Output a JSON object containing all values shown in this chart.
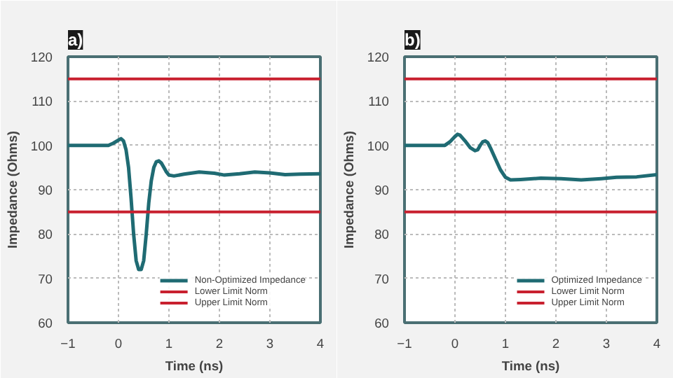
{
  "chart_data": [
    {
      "type": "line",
      "title": "a)",
      "xlabel": "Time (ns)",
      "ylabel": "Impedance (Ohms)",
      "xlim": [
        -1,
        4
      ],
      "ylim": [
        60,
        120
      ],
      "xticks": [
        -1,
        0,
        1,
        2,
        3,
        4
      ],
      "yticks": [
        60,
        70,
        80,
        90,
        100,
        110,
        120
      ],
      "grid": true,
      "legend": "bottom right",
      "series": [
        {
          "name": "Non-Optimized Impedance",
          "color": "#1f6b73",
          "x": [
            -1,
            -0.5,
            -0.2,
            -0.1,
            0,
            0.05,
            0.1,
            0.15,
            0.2,
            0.25,
            0.3,
            0.35,
            0.4,
            0.45,
            0.5,
            0.55,
            0.6,
            0.65,
            0.7,
            0.75,
            0.8,
            0.85,
            0.9,
            0.95,
            1.0,
            1.1,
            1.3,
            1.6,
            1.9,
            2.1,
            2.4,
            2.7,
            3.0,
            3.3,
            3.6,
            4.0
          ],
          "values": [
            100,
            100,
            100,
            100.5,
            101.2,
            101.5,
            101,
            99,
            95,
            88,
            80,
            74,
            72,
            72,
            74,
            80,
            87,
            92,
            95,
            96.3,
            96.5,
            96,
            95,
            94,
            93.3,
            93.1,
            93.5,
            94,
            93.7,
            93.3,
            93.6,
            94,
            93.8,
            93.4,
            93.5,
            93.6
          ]
        },
        {
          "name": "Lower Limit Norm",
          "color": "#c8202f",
          "x": [
            -1,
            4
          ],
          "values": [
            85,
            85
          ]
        },
        {
          "name": "Upper Limit Norm",
          "color": "#c8202f",
          "x": [
            -1,
            4
          ],
          "values": [
            115,
            115
          ]
        }
      ]
    },
    {
      "type": "line",
      "title": "b)",
      "xlabel": "Time (ns)",
      "ylabel": "Impedance (Ohms)",
      "xlim": [
        -1,
        4
      ],
      "ylim": [
        60,
        120
      ],
      "xticks": [
        -1,
        0,
        1,
        2,
        3,
        4
      ],
      "yticks": [
        60,
        70,
        80,
        90,
        100,
        110,
        120
      ],
      "grid": true,
      "legend": "bottom right",
      "series": [
        {
          "name": "Optimized Impedance",
          "color": "#1f6b73",
          "x": [
            -1,
            -0.5,
            -0.2,
            -0.1,
            0,
            0.05,
            0.1,
            0.2,
            0.3,
            0.4,
            0.45,
            0.5,
            0.55,
            0.6,
            0.65,
            0.7,
            0.8,
            0.9,
            1.0,
            1.1,
            1.3,
            1.7,
            2.1,
            2.5,
            2.9,
            3.2,
            3.6,
            4.0
          ],
          "values": [
            100,
            100,
            100,
            100.8,
            102,
            102.5,
            102.3,
            101,
            99.5,
            98.8,
            99,
            100,
            100.8,
            101,
            100.6,
            99.5,
            97,
            94.5,
            92.8,
            92.2,
            92.3,
            92.6,
            92.5,
            92.2,
            92.5,
            92.8,
            92.9,
            93.4
          ]
        },
        {
          "name": "Lower Limit Norm",
          "color": "#c8202f",
          "x": [
            -1,
            4
          ],
          "values": [
            85,
            85
          ]
        },
        {
          "name": "Upper Limit Norm",
          "color": "#c8202f",
          "x": [
            -1,
            4
          ],
          "values": [
            115,
            115
          ]
        }
      ]
    }
  ]
}
